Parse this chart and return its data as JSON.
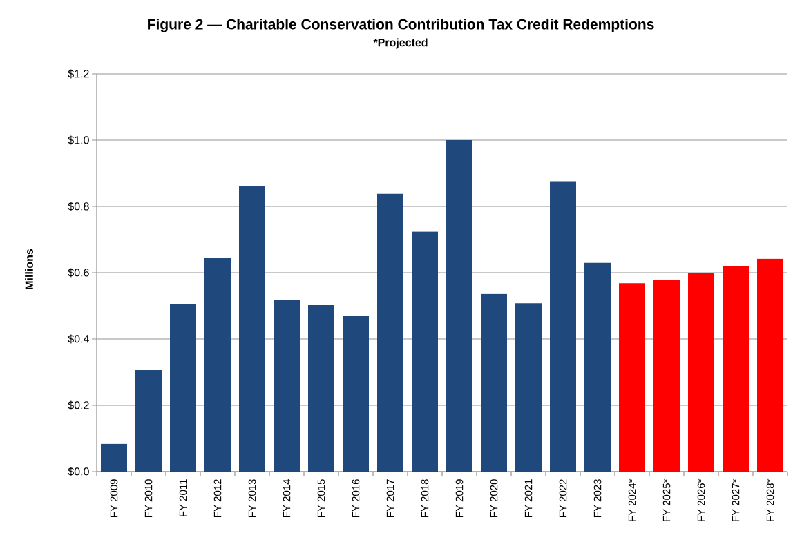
{
  "chart_data": {
    "type": "bar",
    "title": "Figure 2 — Charitable Conservation Contribution Tax Credit Redemptions",
    "subtitle": "*Projected",
    "ylabel": "Millions",
    "categories": [
      "FY 2009",
      "FY 2010",
      "FY 2011",
      "FY 2012",
      "FY 2013",
      "FY 2014",
      "FY 2015",
      "FY 2016",
      "FY 2017",
      "FY 2018",
      "FY 2019",
      "FY 2020",
      "FY 2021",
      "FY 2022",
      "FY 2023",
      "FY 2024*",
      "FY 2025*",
      "FY 2026*",
      "FY 2027*",
      "FY 2028*"
    ],
    "values": [
      0.084,
      0.306,
      0.506,
      0.645,
      0.861,
      0.518,
      0.502,
      0.471,
      0.838,
      0.724,
      1.0,
      0.536,
      0.508,
      0.876,
      0.63,
      0.568,
      0.577,
      0.6,
      0.621,
      0.642
    ],
    "colors": [
      "#1f497d",
      "#1f497d",
      "#1f497d",
      "#1f497d",
      "#1f497d",
      "#1f497d",
      "#1f497d",
      "#1f497d",
      "#1f497d",
      "#1f497d",
      "#1f497d",
      "#1f497d",
      "#1f497d",
      "#1f497d",
      "#1f497d",
      "#ff0000",
      "#ff0000",
      "#ff0000",
      "#ff0000",
      "#ff0000"
    ],
    "ylim": [
      0,
      1.2
    ],
    "yticks": [
      {
        "value": 0,
        "label": "$0.0"
      },
      {
        "value": 0.2,
        "label": "$0.2"
      },
      {
        "value": 0.4,
        "label": "$0.4"
      },
      {
        "value": 0.6,
        "label": "$0.6"
      },
      {
        "value": 0.8,
        "label": "$0.8"
      },
      {
        "value": 1.0,
        "label": "$1.0"
      },
      {
        "value": 1.2,
        "label": "$1.2"
      }
    ],
    "grid": "y"
  }
}
